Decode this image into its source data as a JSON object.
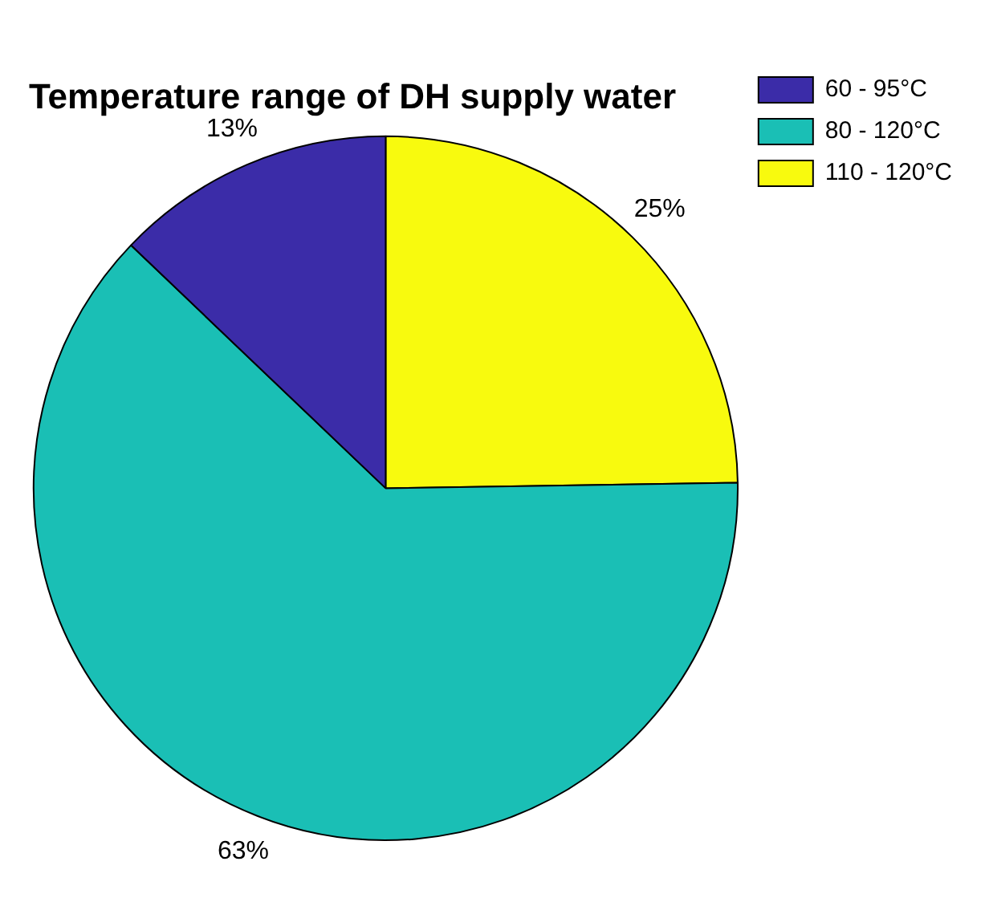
{
  "chart_data": {
    "type": "pie",
    "title": "Temperature range of DH supply water",
    "categories": [
      "60 - 95°C",
      "80 - 120°C",
      "110 - 120°C"
    ],
    "values": [
      13,
      63,
      25
    ],
    "value_labels": [
      "13%",
      "63%",
      "25%"
    ],
    "colors": [
      "#3b2ca8",
      "#1abfb5",
      "#f8fa0e"
    ],
    "legend": "right"
  }
}
